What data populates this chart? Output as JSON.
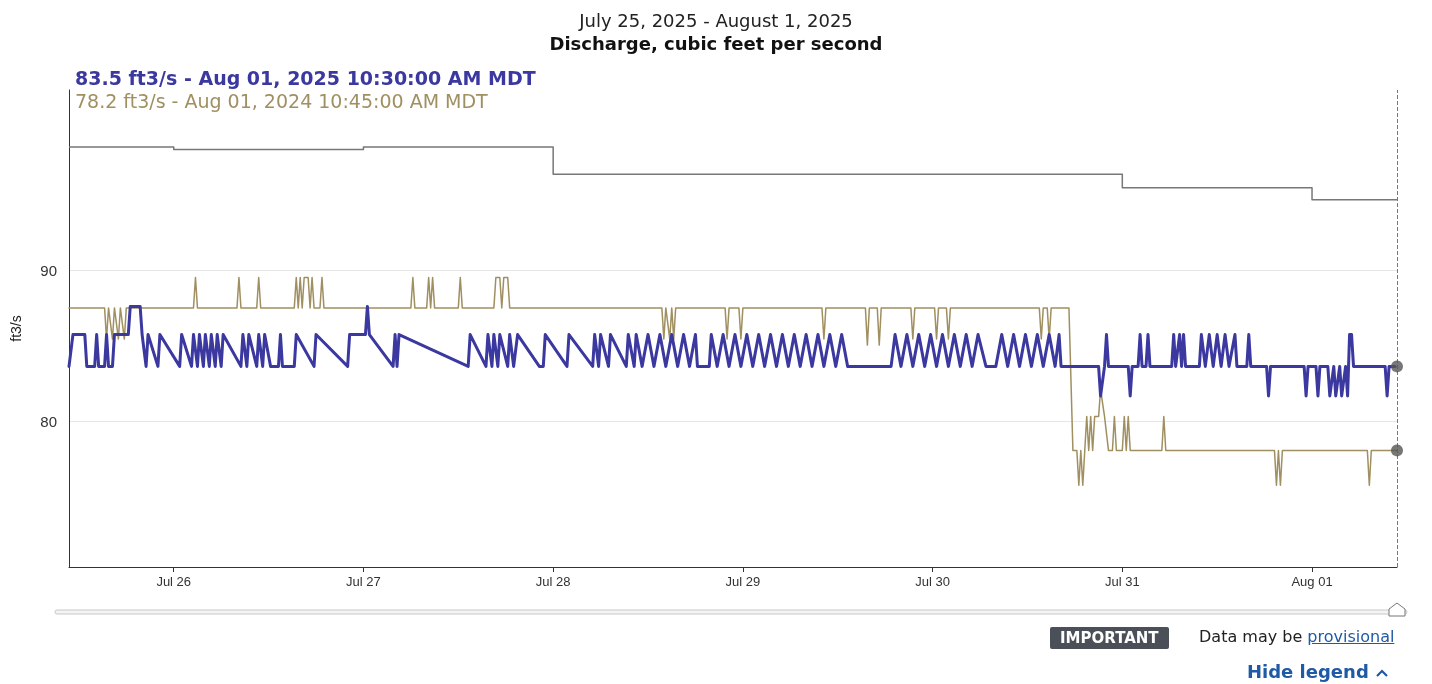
{
  "chart_data": {
    "type": "line",
    "title": "July 25, 2025 - August 1, 2025",
    "subtitle": "Discharge, cubic feet per second",
    "ylabel": "ft3/s",
    "log": "y",
    "ylim": [
      71.4,
      103.6
    ],
    "yticks": [
      80,
      90
    ],
    "xlim": [
      "2025-07-25T10:45",
      "2025-08-01T10:45"
    ],
    "xticks": [
      {
        "value": "2025-07-26",
        "label": "Jul 26"
      },
      {
        "value": "2025-07-27",
        "label": "Jul 27"
      },
      {
        "value": "2025-07-28",
        "label": "Jul 28"
      },
      {
        "value": "2025-07-29",
        "label": "Jul 29"
      },
      {
        "value": "2025-07-30",
        "label": "Jul 30"
      },
      {
        "value": "2025-07-31",
        "label": "Jul 31"
      },
      {
        "value": "2025-08-01",
        "label": "Aug 01"
      }
    ],
    "grid": "y",
    "legend": "top left",
    "marker": "none",
    "line_style": "solid",
    "ref_lines": [
      {
        "axis": "x",
        "value": "2025-08-01T10:45",
        "label": null,
        "color": "#777777",
        "line_style": "dashed"
      }
    ],
    "annotations": [
      "IMPORTANT",
      "Data may be provisional",
      "Hide legend"
    ],
    "series": [
      {
        "name": "83.5 ft3/s - Aug 01, 2025 10:30:00 AM MDT",
        "color": "#3b38a0",
        "x": [
          "2025-07-25T10:45",
          "2025-07-25T11:15",
          "2025-07-25T12:45",
          "2025-07-25T13:00",
          "2025-07-25T14:00",
          "2025-07-25T14:15",
          "2025-07-25T14:30",
          "2025-07-25T15:15",
          "2025-07-25T15:30",
          "2025-07-25T15:45",
          "2025-07-25T16:15",
          "2025-07-25T16:30",
          "2025-07-25T18:15",
          "2025-07-25T18:30",
          "2025-07-25T19:45",
          "2025-07-25T20:00",
          "2025-07-25T20:30",
          "2025-07-25T20:45",
          "2025-07-25T22:00",
          "2025-07-25T22:15",
          "2025-07-26T00:45",
          "2025-07-26T01:00",
          "2025-07-26T02:15",
          "2025-07-26T02:30",
          "2025-07-26T03:00",
          "2025-07-26T03:15",
          "2025-07-26T03:45",
          "2025-07-26T04:00",
          "2025-07-26T04:30",
          "2025-07-26T04:45",
          "2025-07-26T05:15",
          "2025-07-26T05:30",
          "2025-07-26T06:00",
          "2025-07-26T06:15",
          "2025-07-26T08:30",
          "2025-07-26T08:45",
          "2025-07-26T09:15",
          "2025-07-26T09:30",
          "2025-07-26T10:30",
          "2025-07-26T10:45",
          "2025-07-26T11:15",
          "2025-07-26T11:30",
          "2025-07-26T12:15",
          "2025-07-26T13:15",
          "2025-07-26T13:30",
          "2025-07-26T13:45",
          "2025-07-26T15:15",
          "2025-07-26T15:30",
          "2025-07-26T17:45",
          "2025-07-26T18:00",
          "2025-07-26T22:00",
          "2025-07-26T22:15",
          "2025-07-27T00:15",
          "2025-07-27T00:30",
          "2025-07-27T00:45",
          "2025-07-27T03:45",
          "2025-07-27T04:00",
          "2025-07-27T04:15",
          "2025-07-27T04:30",
          "2025-07-27T13:15",
          "2025-07-27T13:30",
          "2025-07-27T15:30",
          "2025-07-27T15:45",
          "2025-07-27T16:15",
          "2025-07-27T16:30",
          "2025-07-27T17:00",
          "2025-07-27T17:15",
          "2025-07-27T18:15",
          "2025-07-27T18:30",
          "2025-07-27T19:00",
          "2025-07-27T19:30",
          "2025-07-27T22:15",
          "2025-07-27T22:45",
          "2025-07-27T23:00",
          "2025-07-28T01:45",
          "2025-07-28T02:00",
          "2025-07-28T05:00",
          "2025-07-28T05:15",
          "2025-07-28T05:45",
          "2025-07-28T06:00",
          "2025-07-28T07:00",
          "2025-07-28T07:15",
          "2025-07-28T09:15",
          "2025-07-28T09:30",
          "2025-07-28T10:15",
          "2025-07-28T10:30",
          "2025-07-28T11:15",
          "2025-07-28T12:00",
          "2025-07-28T12:45",
          "2025-07-28T13:30",
          "2025-07-28T14:15",
          "2025-07-28T15:00",
          "2025-07-28T15:45",
          "2025-07-28T16:30",
          "2025-07-28T17:15",
          "2025-07-28T18:00",
          "2025-07-28T18:15",
          "2025-07-28T19:45",
          "2025-07-28T20:00",
          "2025-07-28T20:45",
          "2025-07-28T21:30",
          "2025-07-28T22:15",
          "2025-07-28T23:00",
          "2025-07-28T23:45",
          "2025-07-29T00:30",
          "2025-07-29T01:15",
          "2025-07-29T02:00",
          "2025-07-29T02:45",
          "2025-07-29T03:30",
          "2025-07-29T04:15",
          "2025-07-29T05:00",
          "2025-07-29T05:45",
          "2025-07-29T06:30",
          "2025-07-29T07:15",
          "2025-07-29T08:00",
          "2025-07-29T08:45",
          "2025-07-29T09:30",
          "2025-07-29T10:15",
          "2025-07-29T11:00",
          "2025-07-29T11:45",
          "2025-07-29T12:30",
          "2025-07-29T13:15",
          "2025-07-29T18:45",
          "2025-07-29T19:15",
          "2025-07-29T20:00",
          "2025-07-29T20:45",
          "2025-07-29T21:30",
          "2025-07-29T22:15",
          "2025-07-29T23:00",
          "2025-07-29T23:45",
          "2025-07-30T00:30",
          "2025-07-30T01:15",
          "2025-07-30T02:00",
          "2025-07-30T02:45",
          "2025-07-30T03:30",
          "2025-07-30T04:15",
          "2025-07-30T05:00",
          "2025-07-30T05:45",
          "2025-07-30T06:45",
          "2025-07-30T08:00",
          "2025-07-30T08:45",
          "2025-07-30T09:30",
          "2025-07-30T10:15",
          "2025-07-30T11:00",
          "2025-07-30T11:45",
          "2025-07-30T12:30",
          "2025-07-30T13:15",
          "2025-07-30T14:00",
          "2025-07-30T14:45",
          "2025-07-30T15:30",
          "2025-07-30T16:00",
          "2025-07-30T16:15",
          "2025-07-30T21:00",
          "2025-07-30T21:15",
          "2025-07-30T21:45",
          "2025-07-30T22:00",
          "2025-07-30T22:15",
          "2025-07-31T00:45",
          "2025-07-31T01:00",
          "2025-07-31T01:15",
          "2025-07-31T02:00",
          "2025-07-31T02:15",
          "2025-07-31T02:30",
          "2025-07-31T03:00",
          "2025-07-31T03:15",
          "2025-07-31T03:30",
          "2025-07-31T06:15",
          "2025-07-31T06:30",
          "2025-07-31T06:45",
          "2025-07-31T07:15",
          "2025-07-31T07:30",
          "2025-07-31T07:45",
          "2025-07-31T08:00",
          "2025-07-31T09:45",
          "2025-07-31T10:00",
          "2025-07-31T10:30",
          "2025-07-31T11:00",
          "2025-07-31T11:30",
          "2025-07-31T12:00",
          "2025-07-31T12:30",
          "2025-07-31T13:00",
          "2025-07-31T13:30",
          "2025-07-31T14:15",
          "2025-07-31T14:30",
          "2025-07-31T15:45",
          "2025-07-31T16:00",
          "2025-07-31T16:15",
          "2025-07-31T18:15",
          "2025-07-31T18:30",
          "2025-07-31T18:45",
          "2025-07-31T23:00",
          "2025-07-31T23:15",
          "2025-07-31T23:30",
          "2025-08-01T00:30",
          "2025-08-01T00:45",
          "2025-08-01T01:00",
          "2025-08-01T02:00",
          "2025-08-01T02:15",
          "2025-08-01T02:45",
          "2025-08-01T03:00",
          "2025-08-01T03:30",
          "2025-08-01T03:45",
          "2025-08-01T04:15",
          "2025-08-01T04:30",
          "2025-08-01T04:45",
          "2025-08-01T05:00",
          "2025-08-01T05:15",
          "2025-08-01T09:15",
          "2025-08-01T09:30",
          "2025-08-01T09:45",
          "2025-08-01T10:30"
        ],
        "values": [
          83.5,
          85.6,
          85.6,
          83.5,
          83.5,
          85.6,
          83.5,
          83.5,
          85.6,
          83.5,
          83.5,
          85.6,
          85.6,
          87.5,
          87.5,
          85.6,
          83.5,
          85.6,
          83.5,
          85.6,
          83.5,
          85.6,
          83.5,
          85.6,
          83.5,
          85.6,
          83.5,
          85.6,
          83.5,
          85.6,
          83.5,
          85.6,
          83.5,
          85.6,
          83.5,
          85.6,
          83.5,
          85.6,
          83.5,
          85.6,
          83.5,
          85.6,
          83.5,
          83.5,
          85.6,
          83.5,
          83.5,
          85.6,
          83.5,
          85.6,
          83.5,
          85.6,
          85.6,
          87.5,
          85.6,
          83.5,
          85.6,
          83.5,
          85.6,
          83.5,
          85.6,
          83.5,
          85.6,
          83.5,
          85.6,
          83.5,
          85.6,
          83.5,
          85.6,
          83.5,
          85.6,
          83.5,
          83.5,
          85.6,
          83.5,
          85.6,
          83.5,
          85.6,
          83.5,
          85.6,
          83.5,
          85.6,
          83.5,
          85.6,
          83.5,
          85.6,
          83.5,
          85.6,
          83.5,
          85.6,
          83.5,
          85.6,
          83.5,
          85.6,
          83.5,
          85.6,
          83.5,
          83.5,
          85.6,
          83.5,
          85.6,
          83.5,
          85.6,
          83.5,
          85.6,
          83.5,
          85.6,
          83.5,
          85.6,
          83.5,
          85.6,
          83.5,
          85.6,
          83.5,
          85.6,
          83.5,
          85.6,
          83.5,
          85.6,
          83.5,
          85.6,
          83.5,
          83.5,
          85.6,
          83.5,
          85.6,
          83.5,
          85.6,
          83.5,
          85.6,
          83.5,
          85.6,
          83.5,
          85.6,
          83.5,
          85.6,
          83.5,
          85.6,
          83.5,
          83.5,
          85.6,
          83.5,
          85.6,
          83.5,
          85.6,
          83.5,
          85.6,
          83.5,
          85.6,
          83.5,
          85.6,
          83.5,
          83.5,
          81.6,
          83.5,
          85.6,
          83.5,
          83.5,
          81.6,
          83.5,
          83.5,
          85.6,
          83.5,
          83.5,
          85.6,
          83.5,
          83.5,
          85.6,
          83.5,
          85.6,
          83.5,
          85.6,
          83.5,
          83.5,
          85.6,
          83.5,
          85.6,
          83.5,
          85.6,
          83.5,
          85.6,
          83.5,
          85.6,
          83.5,
          83.5,
          85.6,
          83.5,
          83.5,
          81.6,
          83.5,
          83.5,
          81.6,
          83.5,
          83.5,
          81.6,
          83.5,
          83.5,
          81.6,
          83.5,
          81.6,
          83.5,
          81.6,
          83.5,
          81.6,
          85.6,
          85.6,
          83.5,
          83.5,
          81.6,
          83.5,
          83.5
        ]
      },
      {
        "name": "78.2 ft3/s - Aug 01, 2024 10:45:00 AM MDT",
        "color": "#a08f60",
        "x": [
          "2025-07-25T10:45",
          "2025-07-25T15:15",
          "2025-07-25T15:30",
          "2025-07-25T15:45",
          "2025-07-25T16:15",
          "2025-07-25T16:30",
          "2025-07-25T17:00",
          "2025-07-25T17:15",
          "2025-07-25T17:45",
          "2025-07-25T18:00",
          "2025-07-26T02:30",
          "2025-07-26T02:45",
          "2025-07-26T03:00",
          "2025-07-26T08:00",
          "2025-07-26T08:15",
          "2025-07-26T08:30",
          "2025-07-26T10:30",
          "2025-07-26T10:45",
          "2025-07-26T11:00",
          "2025-07-26T15:15",
          "2025-07-26T15:30",
          "2025-07-26T15:45",
          "2025-07-26T16:00",
          "2025-07-26T16:15",
          "2025-07-26T16:30",
          "2025-07-26T17:00",
          "2025-07-26T17:15",
          "2025-07-26T17:30",
          "2025-07-26T17:45",
          "2025-07-26T18:30",
          "2025-07-26T18:45",
          "2025-07-26T19:00",
          "2025-07-27T06:00",
          "2025-07-27T06:15",
          "2025-07-27T06:30",
          "2025-07-27T08:00",
          "2025-07-27T08:15",
          "2025-07-27T08:30",
          "2025-07-27T08:45",
          "2025-07-27T09:00",
          "2025-07-27T12:00",
          "2025-07-27T12:15",
          "2025-07-27T12:30",
          "2025-07-27T16:30",
          "2025-07-27T16:45",
          "2025-07-27T17:15",
          "2025-07-27T17:30",
          "2025-07-27T17:45",
          "2025-07-27T18:15",
          "2025-07-27T18:30",
          "2025-07-28T13:45",
          "2025-07-28T14:00",
          "2025-07-28T14:15",
          "2025-07-28T14:45",
          "2025-07-28T15:00",
          "2025-07-28T15:15",
          "2025-07-28T15:30",
          "2025-07-28T21:45",
          "2025-07-28T22:00",
          "2025-07-28T22:15",
          "2025-07-28T23:30",
          "2025-07-28T23:45",
          "2025-07-29T00:00",
          "2025-07-29T10:00",
          "2025-07-29T10:15",
          "2025-07-29T10:30",
          "2025-07-29T15:30",
          "2025-07-29T15:45",
          "2025-07-29T16:00",
          "2025-07-29T17:00",
          "2025-07-29T17:15",
          "2025-07-29T17:30",
          "2025-07-29T21:15",
          "2025-07-29T21:30",
          "2025-07-29T21:45",
          "2025-07-30T00:15",
          "2025-07-30T00:30",
          "2025-07-30T00:45",
          "2025-07-30T01:45",
          "2025-07-30T02:00",
          "2025-07-30T02:15",
          "2025-07-30T13:30",
          "2025-07-30T13:45",
          "2025-07-30T14:00",
          "2025-07-30T14:30",
          "2025-07-30T14:45",
          "2025-07-30T15:00",
          "2025-07-30T17:15",
          "2025-07-30T17:45",
          "2025-07-30T18:15",
          "2025-07-30T18:30",
          "2025-07-30T18:45",
          "2025-07-30T19:00",
          "2025-07-30T19:15",
          "2025-07-30T19:30",
          "2025-07-30T19:45",
          "2025-07-30T20:00",
          "2025-07-30T20:15",
          "2025-07-30T20:30",
          "2025-07-30T21:00",
          "2025-07-30T21:15",
          "2025-07-30T21:45",
          "2025-07-30T22:15",
          "2025-07-30T22:45",
          "2025-07-30T23:00",
          "2025-07-30T23:15",
          "2025-07-31T00:00",
          "2025-07-31T00:15",
          "2025-07-31T00:30",
          "2025-07-31T00:45",
          "2025-07-31T01:00",
          "2025-07-31T05:00",
          "2025-07-31T05:15",
          "2025-07-31T05:30",
          "2025-07-31T19:15",
          "2025-07-31T19:30",
          "2025-07-31T19:45",
          "2025-07-31T20:00",
          "2025-07-31T20:15",
          "2025-08-01T07:00",
          "2025-08-01T07:15",
          "2025-08-01T07:30",
          "2025-08-01T10:45"
        ],
        "values": [
          87.4,
          87.4,
          85.3,
          87.4,
          85.3,
          87.4,
          85.3,
          87.4,
          85.3,
          87.4,
          87.4,
          89.5,
          87.4,
          87.4,
          89.5,
          87.4,
          87.4,
          89.5,
          87.4,
          87.4,
          89.5,
          87.4,
          89.5,
          87.4,
          89.5,
          89.5,
          87.4,
          89.5,
          87.4,
          87.4,
          89.5,
          87.4,
          87.4,
          89.5,
          87.4,
          87.4,
          89.5,
          87.4,
          89.5,
          87.4,
          87.4,
          89.5,
          87.4,
          87.4,
          89.5,
          89.5,
          87.4,
          89.5,
          89.5,
          87.4,
          87.4,
          85.3,
          87.4,
          85.3,
          87.4,
          85.3,
          87.4,
          87.4,
          85.3,
          87.4,
          87.4,
          85.3,
          87.4,
          87.4,
          85.3,
          87.4,
          87.4,
          84.9,
          87.4,
          87.4,
          84.9,
          87.4,
          87.4,
          85.3,
          87.4,
          87.4,
          85.3,
          87.4,
          87.4,
          85.3,
          87.4,
          87.4,
          85.3,
          87.4,
          87.4,
          85.3,
          87.4,
          87.4,
          78.2,
          78.2,
          76.1,
          78.2,
          76.1,
          78.2,
          80.3,
          78.2,
          80.3,
          78.2,
          80.3,
          80.3,
          82.0,
          80.3,
          78.2,
          78.2,
          80.3,
          78.2,
          78.2,
          80.3,
          78.2,
          80.3,
          78.2,
          78.2,
          80.3,
          78.2,
          78.2,
          76.1,
          78.2,
          76.1,
          78.2,
          78.2,
          76.1,
          78.2,
          78.2
        ]
      },
      {
        "color": "#777777",
        "type": "step",
        "x": [
          "2025-07-25T10:45",
          "2025-07-26",
          "2025-07-27",
          "2025-07-28",
          "2025-07-31",
          "2025-08-01",
          "2025-08-01T10:45"
        ],
        "values": [
          99.1,
          98.9,
          99.1,
          97.0,
          96.0,
          95.1,
          95.1
        ]
      },
      {
        "color": "#555555",
        "type": "scatter",
        "marker": "circle",
        "x": [
          "2025-08-01T10:45",
          "2025-08-01T10:45"
        ],
        "values": [
          83.5,
          78.2
        ]
      }
    ]
  }
}
